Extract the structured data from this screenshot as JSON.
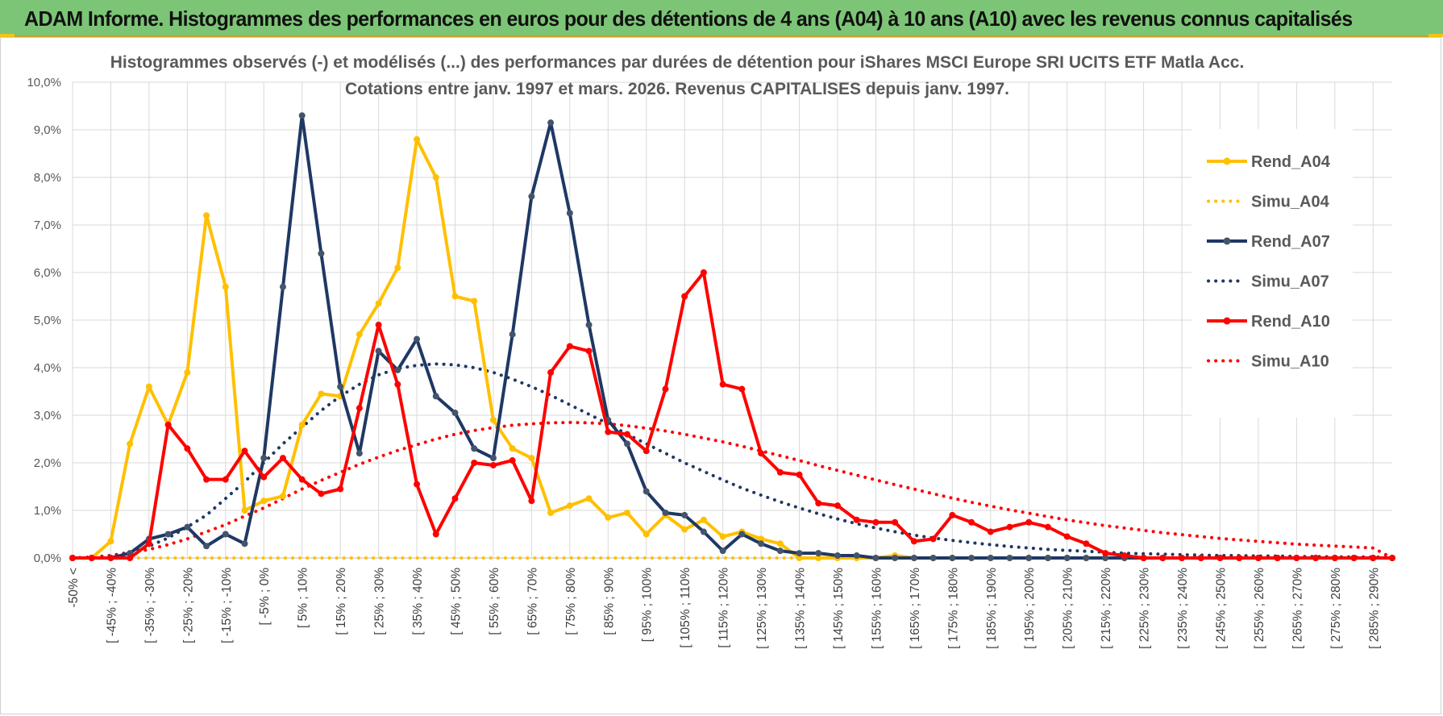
{
  "header": {
    "title": "ADAM Informe. Histogrammes des performances en euros pour des détentions de 4 ans (A04) à 10 ans (A10) avec les revenus connus capitalisés"
  },
  "colors": {
    "A04": "#ffc000",
    "A07": "#1f3864",
    "A10": "#ff0000",
    "grid": "#d9d9d9",
    "banner": "#7cc576"
  },
  "chart_data": {
    "type": "line",
    "title": "Histogrammes observés (-) et modélisés (...) des performances par durées de détention pour iShares MSCI Europe SRI UCITS ETF Matla Acc.",
    "subtitle": "Cotations entre janv. 1997 et mars. 2026. Revenus CAPITALISES depuis janv. 1997.",
    "ylim": [
      0,
      10
    ],
    "yticks": [
      "0,0%",
      "1,0%",
      "2,0%",
      "3,0%",
      "4,0%",
      "5,0%",
      "6,0%",
      "7,0%",
      "8,0%",
      "9,0%",
      "10,0%"
    ],
    "grid": true,
    "legend_position": "right",
    "categories": [
      "-50% <",
      "[ -50% ; -45%",
      "[ -45% ; -40%",
      "[ -40% ; -35%",
      "[ -35% ; -30%",
      "[ -30% ; -25%",
      "[ -25% ; -20%",
      "[ -20% ; -15%",
      "[ -15% ; -10%",
      "[ -10% ; -5%",
      "[ -5% ; 0%",
      "[ 0% ; 5%",
      "[ 5% ; 10%",
      "[ 10% ; 15%",
      "[ 15% ; 20%",
      "[ 20% ; 25%",
      "[ 25% ; 30%",
      "[ 30% ; 35%",
      "[ 35% ; 40%",
      "[ 40% ; 45%",
      "[ 45% ; 50%",
      "[ 50% ; 55%",
      "[ 55% ; 60%",
      "[ 60% ; 65%",
      "[ 65% ; 70%",
      "[ 70% ; 75%",
      "[ 75% ; 80%",
      "[ 80% ; 85%",
      "[ 85% ; 90%",
      "[ 90% ; 95%",
      "[ 95% ; 100%",
      "[ 100% ; 105%",
      "[ 105% ; 110%",
      "[ 110% ; 115%",
      "[ 115% ; 120%",
      "[ 120% ; 125%",
      "[ 125% ; 130%",
      "[ 130% ; 135%",
      "[ 135% ; 140%",
      "[ 140% ; 145%",
      "[ 145% ; 150%",
      "[ 150% ; 155%",
      "[ 155% ; 160%",
      "[ 160% ; 165%",
      "[ 165% ; 170%",
      "[ 170% ; 175%",
      "[ 175% ; 180%",
      "[ 180% ; 185%",
      "[ 185% ; 190%",
      "[ 190% ; 195%",
      "[ 195% ; 200%",
      "[ 200% ; 205%",
      "[ 205% ; 210%",
      "[ 210% ; 215%",
      "[ 215% ; 220%",
      "[ 220% ; 225%",
      "[ 225% ; 230%",
      "[ 230% ; 235%",
      "[ 235% ; 240%",
      "[ 240% ; 245%",
      "[ 245% ; 250%",
      "[ 250% ; 255%",
      "[ 255% ; 260%",
      "[ 260% ; 265%",
      "[ 265% ; 270%",
      "[ 270% ; 275%",
      "[ 275% ; 280%",
      "[ 280% ; 285%",
      "[ 285% ; 290%",
      "[ 290% ; 295%"
    ],
    "visible_tick_labels": [
      "-50% <",
      "[ -45% ; -40%",
      "[ -35% ; -30%",
      "[ -25% ; -20%",
      "[ -15% ; -10%",
      "[ -5% ; 0%",
      "[ 5% ; 10%",
      "[ 15% ; 20%",
      "[ 25% ; 30%",
      "[ 35% ; 40%",
      "[ 45% ; 50%",
      "[ 55% ; 60%",
      "[ 65% ; 70%",
      "[ 75% ; 80%",
      "[ 85% ; 90%",
      "[ 95% ; 100%",
      "[ 105% ; 110%",
      "[ 115% ; 120%",
      "[ 125% ; 130%",
      "[ 135% ; 140%",
      "[ 145% ; 150%",
      "[ 155% ; 160%",
      "[ 165% ; 170%",
      "[ 175% ; 180%",
      "[ 185% ; 190%",
      "[ 195% ; 200%",
      "[ 205% ; 210%",
      "[ 215% ; 220%",
      "[ 225% ; 230%",
      "[ 235% ; 240%",
      "[ 245% ; 250%",
      "[ 255% ; 260%",
      "[ 265% ; 270%",
      "[ 275% ; 280%",
      "[ 285% ; 290%"
    ],
    "series": [
      {
        "name": "Rend_A04",
        "style": "solid",
        "color": "#ffc000",
        "values": [
          0,
          0,
          0.35,
          2.4,
          3.6,
          2.8,
          3.9,
          7.2,
          5.7,
          1.0,
          1.2,
          1.3,
          2.8,
          3.45,
          3.4,
          4.7,
          5.35,
          6.1,
          8.8,
          8.0,
          5.5,
          5.4,
          2.9,
          2.3,
          2.1,
          0.95,
          1.1,
          1.25,
          0.85,
          0.95,
          0.5,
          0.9,
          0.6,
          0.8,
          0.45,
          0.55,
          0.4,
          0.3,
          0,
          0,
          0,
          0,
          0,
          0.05,
          0,
          0,
          0,
          0,
          0,
          0,
          0,
          0,
          0,
          0,
          0,
          0,
          0,
          0,
          0,
          0,
          0,
          0,
          0,
          0,
          0,
          0,
          0,
          0,
          0,
          0
        ]
      },
      {
        "name": "Simu_A04",
        "style": "dotted",
        "color": "#ffc000",
        "values": [
          0,
          0,
          0,
          0,
          0,
          0,
          0,
          0,
          0,
          0,
          0,
          0,
          0,
          0,
          0,
          0,
          0,
          0,
          0,
          0,
          0,
          0,
          0,
          0,
          0,
          0,
          0,
          0,
          0,
          0,
          0,
          0,
          0,
          0,
          0,
          0,
          0,
          0,
          0,
          0,
          0,
          0,
          0,
          0,
          0,
          0,
          0,
          0,
          0,
          0,
          0,
          0,
          0,
          0,
          0,
          0,
          0,
          0,
          0,
          0,
          0,
          0,
          0,
          0,
          0,
          0,
          0,
          0,
          0,
          0
        ]
      },
      {
        "name": "Rend_A07",
        "style": "solid",
        "color": "#1f3864",
        "values": [
          0,
          0,
          0,
          0.1,
          0.4,
          0.5,
          0.65,
          0.25,
          0.5,
          0.3,
          2.1,
          5.7,
          9.3,
          6.4,
          3.6,
          2.2,
          4.35,
          3.95,
          4.6,
          3.4,
          3.05,
          2.3,
          2.1,
          4.7,
          7.6,
          9.15,
          7.25,
          4.9,
          2.9,
          2.4,
          1.4,
          0.95,
          0.9,
          0.55,
          0.15,
          0.5,
          0.3,
          0.15,
          0.1,
          0.1,
          0.05,
          0.05,
          0,
          0,
          0,
          0,
          0,
          0,
          0,
          0,
          0,
          0,
          0,
          0,
          0,
          0,
          0,
          0,
          0,
          0,
          0,
          0,
          0,
          0,
          0,
          0,
          0,
          0,
          0,
          0
        ]
      },
      {
        "name": "Simu_A07",
        "style": "dotted",
        "color": "#1f3864",
        "values": [
          0,
          0.02,
          0.05,
          0.12,
          0.25,
          0.42,
          0.65,
          0.9,
          1.25,
          1.6,
          2.0,
          2.4,
          2.75,
          3.1,
          3.4,
          3.65,
          3.85,
          3.98,
          4.05,
          4.08,
          4.06,
          4.0,
          3.9,
          3.76,
          3.6,
          3.42,
          3.22,
          3.02,
          2.82,
          2.6,
          2.4,
          2.2,
          2.0,
          1.82,
          1.64,
          1.47,
          1.32,
          1.18,
          1.05,
          0.93,
          0.82,
          0.72,
          0.63,
          0.55,
          0.48,
          0.42,
          0.37,
          0.32,
          0.28,
          0.24,
          0.21,
          0.18,
          0.16,
          0.14,
          0.12,
          0.1,
          0.09,
          0.08,
          0.07,
          0.06,
          0.05,
          0.05,
          0.04,
          0.04,
          0.03,
          0.03,
          0.02,
          0.02,
          0.02,
          0.01
        ]
      },
      {
        "name": "Rend_A10",
        "style": "solid",
        "color": "#ff0000",
        "values": [
          0,
          0,
          0,
          0,
          0.3,
          2.8,
          2.3,
          1.65,
          1.65,
          2.25,
          1.7,
          2.1,
          1.65,
          1.35,
          1.45,
          3.15,
          4.9,
          3.65,
          1.55,
          0.5,
          1.25,
          2.0,
          1.95,
          2.05,
          1.2,
          3.9,
          4.45,
          4.35,
          2.65,
          2.6,
          2.25,
          3.55,
          5.5,
          6.0,
          3.65,
          3.55,
          2.2,
          1.8,
          1.75,
          1.15,
          1.1,
          0.8,
          0.75,
          0.75,
          0.35,
          0.4,
          0.9,
          0.75,
          0.55,
          0.65,
          0.75,
          0.65,
          0.45,
          0.3,
          0.1,
          0.05,
          0,
          0,
          0,
          0,
          0,
          0,
          0,
          0,
          0,
          0,
          0,
          0,
          0,
          0
        ]
      },
      {
        "name": "Simu_A10",
        "style": "dotted",
        "color": "#ff0000",
        "values": [
          0,
          0.01,
          0.04,
          0.1,
          0.18,
          0.28,
          0.4,
          0.55,
          0.7,
          0.88,
          1.05,
          1.25,
          1.45,
          1.63,
          1.8,
          1.97,
          2.12,
          2.26,
          2.38,
          2.5,
          2.6,
          2.68,
          2.74,
          2.79,
          2.82,
          2.84,
          2.85,
          2.84,
          2.82,
          2.78,
          2.73,
          2.67,
          2.6,
          2.52,
          2.44,
          2.35,
          2.25,
          2.15,
          2.05,
          1.94,
          1.84,
          1.74,
          1.64,
          1.54,
          1.45,
          1.35,
          1.26,
          1.17,
          1.09,
          1.01,
          0.94,
          0.87,
          0.8,
          0.74,
          0.68,
          0.63,
          0.58,
          0.53,
          0.49,
          0.45,
          0.41,
          0.38,
          0.35,
          0.32,
          0.29,
          0.27,
          0.25,
          0.23,
          0.21,
          0.0
        ]
      }
    ]
  }
}
